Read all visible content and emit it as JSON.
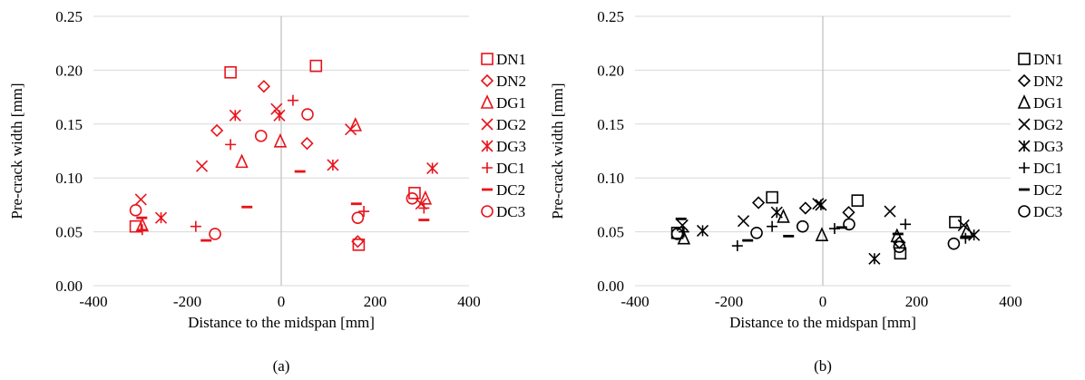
{
  "chart_data": [
    {
      "type": "scatter",
      "panel_label": "(a)",
      "xlabel": "Distance to the midspan  [mm]",
      "ylabel": "Pre-crack width [mm]",
      "xlim": [
        -400,
        400
      ],
      "ylim": [
        0,
        0.25
      ],
      "xticks": [
        "-400",
        "-200",
        "0",
        "200",
        "400"
      ],
      "yticks": [
        "0.00",
        "0.05",
        "0.10",
        "0.15",
        "0.20",
        "0.25"
      ],
      "color": "#e8131b",
      "grid": "horizontal",
      "legend": "right",
      "series": [
        {
          "name": "DN1",
          "marker": "square",
          "points": [
            [
              -108,
              0.198
            ],
            [
              74,
              0.204
            ],
            [
              -310,
              0.055
            ],
            [
              284,
              0.086
            ],
            [
              165,
              0.038
            ]
          ]
        },
        {
          "name": "DN2",
          "marker": "diamond",
          "points": [
            [
              -137,
              0.144
            ],
            [
              -37,
              0.185
            ],
            [
              55,
              0.132
            ],
            [
              163,
              0.041
            ]
          ]
        },
        {
          "name": "DG1",
          "marker": "triangle",
          "points": [
            [
              -84,
              0.115
            ],
            [
              -2,
              0.134
            ],
            [
              158,
              0.149
            ],
            [
              -296,
              0.056
            ],
            [
              307,
              0.081
            ]
          ]
        },
        {
          "name": "DG2",
          "marker": "x",
          "points": [
            [
              -169,
              0.111
            ],
            [
              -10,
              0.164
            ],
            [
              148,
              0.145
            ],
            [
              -299,
              0.08
            ],
            [
              298,
              0.076
            ]
          ]
        },
        {
          "name": "DG3",
          "marker": "star",
          "points": [
            [
              -98,
              0.158
            ],
            [
              -4,
              0.158
            ],
            [
              110,
              0.112
            ],
            [
              -256,
              0.063
            ],
            [
              322,
              0.109
            ]
          ]
        },
        {
          "name": "DC1",
          "marker": "plus",
          "points": [
            [
              -182,
              0.055
            ],
            [
              -108,
              0.131
            ],
            [
              25,
              0.172
            ],
            [
              176,
              0.069
            ],
            [
              -296,
              0.052
            ],
            [
              304,
              0.072
            ]
          ]
        },
        {
          "name": "DC2",
          "marker": "dash",
          "points": [
            [
              -160,
              0.042
            ],
            [
              -73,
              0.073
            ],
            [
              40,
              0.106
            ],
            [
              160,
              0.076
            ],
            [
              304,
              0.061
            ],
            [
              -297,
              0.063
            ]
          ]
        },
        {
          "name": "DC3",
          "marker": "circle",
          "points": [
            [
              -141,
              0.048
            ],
            [
              -43,
              0.139
            ],
            [
              56,
              0.159
            ],
            [
              163,
              0.063
            ],
            [
              -310,
              0.07
            ],
            [
              279,
              0.081
            ]
          ]
        }
      ]
    },
    {
      "type": "scatter",
      "panel_label": "(b)",
      "xlabel": "Distance to the midspan  [mm]",
      "ylabel": "Pre-crack width [mm]",
      "xlim": [
        -400,
        400
      ],
      "ylim": [
        0,
        0.25
      ],
      "xticks": [
        "-400",
        "-200",
        "0",
        "200",
        "400"
      ],
      "yticks": [
        "0.00",
        "0.05",
        "0.10",
        "0.15",
        "0.20",
        "0.25"
      ],
      "color": "#000000",
      "grid": "horizontal",
      "legend": "right",
      "series": [
        {
          "name": "DN1",
          "marker": "square",
          "points": [
            [
              -310,
              0.049
            ],
            [
              -108,
              0.082
            ],
            [
              74,
              0.079
            ],
            [
              165,
              0.03
            ],
            [
              282,
              0.059
            ]
          ]
        },
        {
          "name": "DN2",
          "marker": "diamond",
          "points": [
            [
              -137,
              0.077
            ],
            [
              -37,
              0.072
            ],
            [
              55,
              0.068
            ],
            [
              163,
              0.04
            ]
          ]
        },
        {
          "name": "DG1",
          "marker": "triangle",
          "points": [
            [
              -296,
              0.044
            ],
            [
              -84,
              0.064
            ],
            [
              -2,
              0.047
            ],
            [
              158,
              0.046
            ],
            [
              307,
              0.051
            ]
          ]
        },
        {
          "name": "DG2",
          "marker": "x",
          "points": [
            [
              -299,
              0.056
            ],
            [
              -169,
              0.06
            ],
            [
              -10,
              0.076
            ],
            [
              143,
              0.069
            ],
            [
              300,
              0.056
            ]
          ]
        },
        {
          "name": "DG3",
          "marker": "star",
          "points": [
            [
              -256,
              0.051
            ],
            [
              -98,
              0.068
            ],
            [
              -4,
              0.075
            ],
            [
              110,
              0.025
            ],
            [
              322,
              0.047
            ]
          ]
        },
        {
          "name": "DC1",
          "marker": "plus",
          "points": [
            [
              -182,
              0.037
            ],
            [
              -108,
              0.055
            ],
            [
              25,
              0.053
            ],
            [
              176,
              0.057
            ],
            [
              -296,
              0.05
            ],
            [
              304,
              0.044
            ]
          ]
        },
        {
          "name": "DC2",
          "marker": "dash",
          "points": [
            [
              -302,
              0.062
            ],
            [
              -160,
              0.042
            ],
            [
              -73,
              0.046
            ],
            [
              40,
              0.054
            ],
            [
              160,
              0.048
            ],
            [
              304,
              0.045
            ]
          ]
        },
        {
          "name": "DC3",
          "marker": "circle",
          "points": [
            [
              -310,
              0.048
            ],
            [
              -141,
              0.049
            ],
            [
              -43,
              0.055
            ],
            [
              56,
              0.057
            ],
            [
              163,
              0.036
            ],
            [
              279,
              0.039
            ]
          ]
        }
      ]
    }
  ]
}
